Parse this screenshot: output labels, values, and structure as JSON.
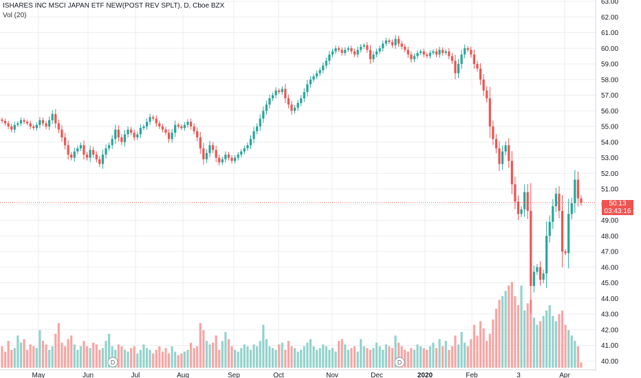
{
  "header": {
    "title": "ISHARES INC MSCI JAPAN ETF NEW(POST REV SPLT), D, Cboe BZX",
    "volume_label": "Vol (20)"
  },
  "price_tag": {
    "price": "50.13",
    "countdown": "03:43:16"
  },
  "colors": {
    "up": "#26a69a",
    "down": "#ef5350",
    "up_vol": "#93d2cc",
    "down_vol": "#f5a6a4",
    "grid": "#ecedf0",
    "axis_text": "#131722"
  },
  "chart_data": {
    "type": "candlestick",
    "title": "ISHARES INC MSCI JAPAN ETF NEW(POST REV SPLT), D, Cboe BZX",
    "ylim": [
      39.8,
      63.0
    ],
    "y_ticks": [
      "40.00",
      "41.00",
      "42.00",
      "43.00",
      "44.00",
      "45.00",
      "46.00",
      "47.00",
      "48.00",
      "49.00",
      "50.00",
      "51.00",
      "52.00",
      "53.00",
      "54.00",
      "55.00",
      "56.00",
      "57.00",
      "58.00",
      "59.00",
      "60.00",
      "61.00",
      "62.00",
      "63.00"
    ],
    "x_labels": [
      "May",
      "Jun",
      "Jul",
      "Aug",
      "Sep",
      "Oct",
      "Nov",
      "Dec",
      "2020",
      "Feb",
      "3",
      "Apr"
    ],
    "dividend_markers": [
      "D",
      "D"
    ],
    "last_price": 50.13,
    "grid": true,
    "closes": [
      55.35,
      55.2,
      55.0,
      54.8,
      55.1,
      55.2,
      55.4,
      55.3,
      55.2,
      55.0,
      54.9,
      55.1,
      55.4,
      55.2,
      55.0,
      55.4,
      55.8,
      55.2,
      54.8,
      54.3,
      53.8,
      53.2,
      53.0,
      53.4,
      53.6,
      53.8,
      53.2,
      53.0,
      53.5,
      53.2,
      52.9,
      52.6,
      53.2,
      53.6,
      53.8,
      54.2,
      54.8,
      54.3,
      54.0,
      54.5,
      54.8,
      54.6,
      54.3,
      54.5,
      54.9,
      55.0,
      55.3,
      55.6,
      55.5,
      55.2,
      55.0,
      54.8,
      54.6,
      54.2,
      54.6,
      55.1,
      55.0,
      54.9,
      55.1,
      55.3,
      55.0,
      54.7,
      54.3,
      53.6,
      52.9,
      53.3,
      53.8,
      53.5,
      53.0,
      52.7,
      52.9,
      53.2,
      53.0,
      52.8,
      53.0,
      53.2,
      53.4,
      53.6,
      53.8,
      54.2,
      54.7,
      55.0,
      55.5,
      56.0,
      56.4,
      56.8,
      57.0,
      57.3,
      57.2,
      57.4,
      56.8,
      56.4,
      56.0,
      56.2,
      56.5,
      56.8,
      57.2,
      57.7,
      58.0,
      58.2,
      58.4,
      58.6,
      58.9,
      59.2,
      59.6,
      59.8,
      60.0,
      59.9,
      59.7,
      59.9,
      60.0,
      59.8,
      59.6,
      59.9,
      60.1,
      60.2,
      59.9,
      59.3,
      59.6,
      59.8,
      60.0,
      60.3,
      60.5,
      60.4,
      60.2,
      60.6,
      60.3,
      60.1,
      59.9,
      59.6,
      59.3,
      59.5,
      59.7,
      59.8,
      59.6,
      59.5,
      59.7,
      59.8,
      59.6,
      59.9,
      59.7,
      59.8,
      59.5,
      59.2,
      58.4,
      59.0,
      59.6,
      60.0,
      59.9,
      59.6,
      59.0,
      58.7,
      58.0,
      57.3,
      56.8,
      55.0,
      54.2,
      53.6,
      52.6,
      53.4,
      53.8,
      52.8,
      51.3,
      50.2,
      49.4,
      49.7,
      50.8,
      49.6,
      44.8,
      45.7,
      46.0,
      45.2,
      45.6,
      48.0,
      48.9,
      49.9,
      50.7,
      49.6,
      47.0,
      46.9,
      49.4,
      50.1,
      51.6,
      50.4,
      50.13
    ],
    "volume_series": {
      "name": "Vol (20)",
      "values": [
        1.2,
        0.9,
        1.5,
        1.0,
        1.1,
        1.8,
        1.4,
        1.6,
        1.0,
        1.3,
        1.2,
        1.1,
        2.1,
        1.5,
        1.3,
        1.0,
        1.2,
        1.9,
        2.5,
        1.4,
        1.2,
        1.6,
        1.8,
        1.3,
        1.0,
        1.2,
        1.5,
        1.2,
        1.1,
        1.4,
        1.3,
        1.0,
        1.1,
        1.5,
        1.9,
        1.2,
        1.0,
        1.3,
        1.2,
        1.0,
        0.9,
        1.1,
        1.2,
        0.8,
        1.0,
        1.3,
        1.1,
        1.0,
        0.8,
        1.0,
        1.2,
        0.9,
        1.1,
        0.8,
        1.2,
        0.9,
        0.7,
        0.8,
        0.9,
        1.0,
        1.4,
        1.1,
        1.2,
        2.5,
        2.1,
        1.5,
        1.3,
        1.4,
        1.8,
        1.0,
        1.5,
        2.0,
        1.6,
        1.2,
        1.0,
        0.9,
        1.1,
        1.3,
        1.2,
        1.0,
        1.3,
        1.2,
        1.5,
        2.4,
        1.6,
        1.2,
        1.1,
        1.0,
        1.3,
        1.4,
        1.0,
        1.5,
        1.2,
        1.1,
        0.9,
        1.0,
        1.2,
        1.4,
        1.6,
        1.2,
        1.0,
        1.1,
        1.3,
        1.2,
        1.0,
        1.1,
        0.9,
        1.5,
        1.6,
        1.3,
        1.0,
        1.1,
        1.2,
        0.9,
        1.6,
        1.2,
        1.1,
        1.0,
        1.1,
        1.4,
        1.2,
        1.0,
        1.3,
        1.2,
        1.1,
        1.8,
        1.4,
        1.2,
        1.0,
        0.9,
        1.1,
        1.0,
        1.3,
        1.2,
        1.1,
        1.0,
        1.2,
        1.4,
        1.1,
        1.6,
        1.2,
        1.5,
        1.0,
        1.2,
        1.8,
        1.3,
        2.0,
        1.4,
        1.2,
        1.6,
        2.4,
        1.8,
        2.6,
        2.2,
        1.5,
        1.9,
        2.7,
        3.3,
        3.8,
        4.0,
        4.3,
        4.6,
        4.8,
        4.0,
        3.5,
        4.6,
        3.2,
        3.6,
        3.8,
        2.8,
        2.4,
        2.6,
        2.9,
        3.2,
        3.5,
        2.9,
        2.6,
        3.0,
        3.2,
        2.4,
        2.1,
        1.8,
        1.5,
        1.2,
        0.3
      ]
    }
  }
}
